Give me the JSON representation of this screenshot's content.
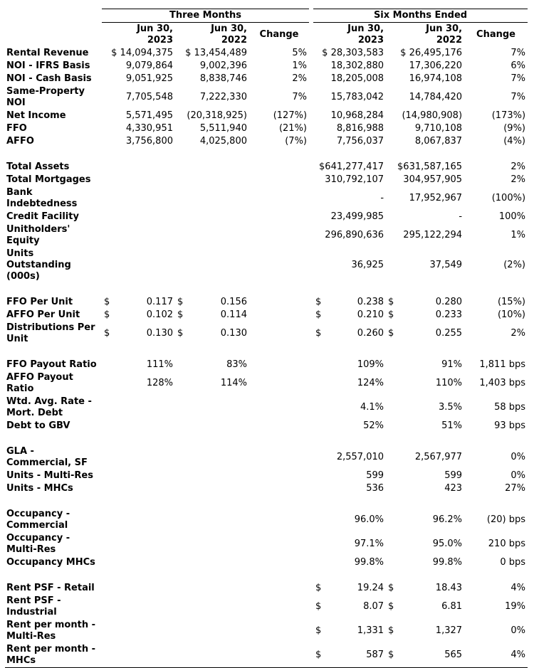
{
  "table": {
    "groups": [
      "Three Months",
      "Six Months Ended"
    ],
    "columns": [
      [
        "Jun 30,",
        "2023"
      ],
      [
        "Jun 30,",
        "2022"
      ],
      [
        "Change"
      ],
      [
        "Jun 30,",
        "2023"
      ],
      [
        "Jun 30,",
        "2022"
      ],
      [
        "Change"
      ]
    ],
    "sections": [
      {
        "rows": [
          {
            "label": "Rental Revenue",
            "cells": [
              "$ 14,094,375",
              "$ 13,454,489",
              "5%",
              "$ 28,303,583",
              "$ 26,495,176",
              "7%"
            ]
          },
          {
            "label": "NOI - IFRS Basis",
            "cells": [
              "9,079,864",
              "9,002,396",
              "1%",
              "18,302,880",
              "17,306,220",
              "6%"
            ]
          },
          {
            "label": "NOI - Cash Basis",
            "cells": [
              "9,051,925",
              "8,838,746",
              "2%",
              "18,205,008",
              "16,974,108",
              "7%"
            ]
          },
          {
            "label": "Same-Property NOI",
            "cells": [
              "7,705,548",
              "7,222,330",
              "7%",
              "15,783,042",
              "14,784,420",
              "7%"
            ]
          },
          {
            "label": "Net Income",
            "cells": [
              "5,571,495",
              "(20,318,925)",
              "(127%)",
              "10,968,284",
              "(14,980,908)",
              "(173%)"
            ]
          },
          {
            "label": "FFO",
            "cells": [
              "4,330,951",
              "5,511,940",
              "(21%)",
              "8,816,988",
              "9,710,108",
              "(9%)"
            ]
          },
          {
            "label": "AFFO",
            "cells": [
              "3,756,800",
              "4,025,800",
              "(7%)",
              "7,756,037",
              "8,067,837",
              "(4%)"
            ]
          }
        ]
      },
      {
        "rows": [
          {
            "label": "Total Assets",
            "cells": [
              null,
              null,
              null,
              "$641,277,417",
              "$631,587,165",
              "2%"
            ]
          },
          {
            "label": "Total Mortgages",
            "cells": [
              null,
              null,
              null,
              "310,792,107",
              "304,957,905",
              "2%"
            ]
          },
          {
            "label": "Bank Indebtedness",
            "cells": [
              null,
              null,
              null,
              "-",
              "17,952,967",
              "(100%)"
            ]
          },
          {
            "label": "Credit Facility",
            "cells": [
              null,
              null,
              null,
              "23,499,985",
              "-",
              "100%"
            ]
          },
          {
            "label": "Unitholders' Equity",
            "cells": [
              null,
              null,
              null,
              "296,890,636",
              "295,122,294",
              "1%"
            ]
          },
          {
            "label": "Units Outstanding (000s)",
            "cells": [
              null,
              null,
              null,
              "36,925",
              "37,549",
              "(2%)"
            ]
          }
        ]
      },
      {
        "rows": [
          {
            "label": "FFO Per Unit",
            "cells": [
              {
                "symbol": "$",
                "amount": "0.117"
              },
              {
                "symbol": "$",
                "amount": "0.156"
              },
              null,
              {
                "symbol": "$",
                "amount": "0.238"
              },
              {
                "symbol": "$",
                "amount": "0.280"
              },
              "(15%)"
            ]
          },
          {
            "label": "AFFO Per Unit",
            "cells": [
              {
                "symbol": "$",
                "amount": "0.102"
              },
              {
                "symbol": "$",
                "amount": "0.114"
              },
              null,
              {
                "symbol": "$",
                "amount": "0.210"
              },
              {
                "symbol": "$",
                "amount": "0.233"
              },
              "(10%)"
            ]
          },
          {
            "label": "Distributions Per Unit",
            "cells": [
              {
                "symbol": "$",
                "amount": "0.130"
              },
              {
                "symbol": "$",
                "amount": "0.130"
              },
              null,
              {
                "symbol": "$",
                "amount": "0.260"
              },
              {
                "symbol": "$",
                "amount": "0.255"
              },
              "2%"
            ]
          }
        ]
      },
      {
        "rows": [
          {
            "label": "FFO Payout Ratio",
            "cells": [
              "111%",
              "83%",
              null,
              "109%",
              "91%",
              "1,811 bps"
            ]
          },
          {
            "label": "AFFO Payout Ratio",
            "cells": [
              "128%",
              "114%",
              null,
              "124%",
              "110%",
              "1,403 bps"
            ]
          },
          {
            "label": "Wtd. Avg. Rate - Mort. Debt",
            "cells": [
              null,
              null,
              null,
              "4.1%",
              "3.5%",
              "58 bps"
            ]
          },
          {
            "label": "Debt to GBV",
            "cells": [
              null,
              null,
              null,
              "52%",
              "51%",
              "93 bps"
            ]
          }
        ]
      },
      {
        "rows": [
          {
            "label": "GLA - Commercial, SF",
            "cells": [
              null,
              null,
              null,
              "2,557,010",
              "2,567,977",
              "0%"
            ]
          },
          {
            "label": "Units - Multi-Res",
            "cells": [
              null,
              null,
              null,
              "599",
              "599",
              "0%"
            ]
          },
          {
            "label": "Units - MHCs",
            "cells": [
              null,
              null,
              null,
              "536",
              "423",
              "27%"
            ]
          }
        ]
      },
      {
        "rows": [
          {
            "label": "Occupancy - Commercial",
            "cells": [
              null,
              null,
              null,
              "96.0%",
              "96.2%",
              "(20) bps"
            ]
          },
          {
            "label": "Occupancy - Multi-Res",
            "cells": [
              null,
              null,
              null,
              "97.1%",
              "95.0%",
              "210 bps"
            ]
          },
          {
            "label": "Occupancy MHCs",
            "cells": [
              null,
              null,
              null,
              "99.8%",
              "99.8%",
              "0 bps"
            ]
          }
        ]
      },
      {
        "rows": [
          {
            "label": "Rent PSF - Retail",
            "cells": [
              null,
              null,
              null,
              {
                "symbol": "$",
                "amount": "19.24"
              },
              {
                "symbol": "$",
                "amount": "18.43"
              },
              "4%"
            ]
          },
          {
            "label": "Rent PSF - Industrial",
            "cells": [
              null,
              null,
              null,
              {
                "symbol": "$",
                "amount": "8.07"
              },
              {
                "symbol": "$",
                "amount": "6.81"
              },
              "19%"
            ]
          },
          {
            "label": "Rent per month - Multi-Res",
            "cells": [
              null,
              null,
              null,
              {
                "symbol": "$",
                "amount": "1,331"
              },
              {
                "symbol": "$",
                "amount": "1,327"
              },
              "0%"
            ]
          },
          {
            "label": "Rent per month - MHCs",
            "cells": [
              null,
              null,
              null,
              {
                "symbol": "$",
                "amount": "587"
              },
              {
                "symbol": "$",
                "amount": "565"
              },
              "4%"
            ]
          }
        ]
      }
    ]
  }
}
